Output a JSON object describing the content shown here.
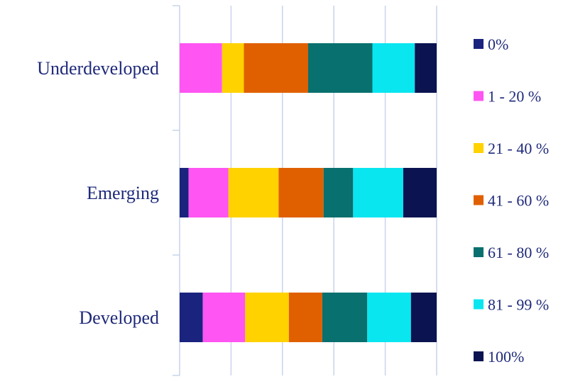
{
  "chart_data": {
    "type": "bar",
    "orientation": "horizontal",
    "stacked": true,
    "normalized_percent": true,
    "categories": [
      "Underdeveloped",
      "Emerging",
      "Developed"
    ],
    "xlim": [
      0,
      100
    ],
    "grid": "vertical",
    "legend_placement": "right",
    "series": [
      {
        "name": "0%",
        "color": "#1a237e",
        "values": [
          0,
          3.5,
          9
        ]
      },
      {
        "name": "1 - 20 %",
        "color": "#ff55f2",
        "values": [
          16.5,
          15.5,
          16.5
        ]
      },
      {
        "name": "21 - 40 %",
        "color": "#ffd200",
        "values": [
          8.5,
          19.5,
          17
        ]
      },
      {
        "name": "41 - 60 %",
        "color": "#e06000",
        "values": [
          25,
          17.5,
          13
        ]
      },
      {
        "name": "61 - 80 %",
        "color": "#08706e",
        "values": [
          25,
          11.5,
          17.5
        ]
      },
      {
        "name": "81 - 99 %",
        "color": "#09e6f0",
        "values": [
          16.5,
          19.5,
          17
        ]
      },
      {
        "name": "100%",
        "color": "#0b1450",
        "values": [
          8.5,
          13,
          10
        ]
      }
    ]
  }
}
